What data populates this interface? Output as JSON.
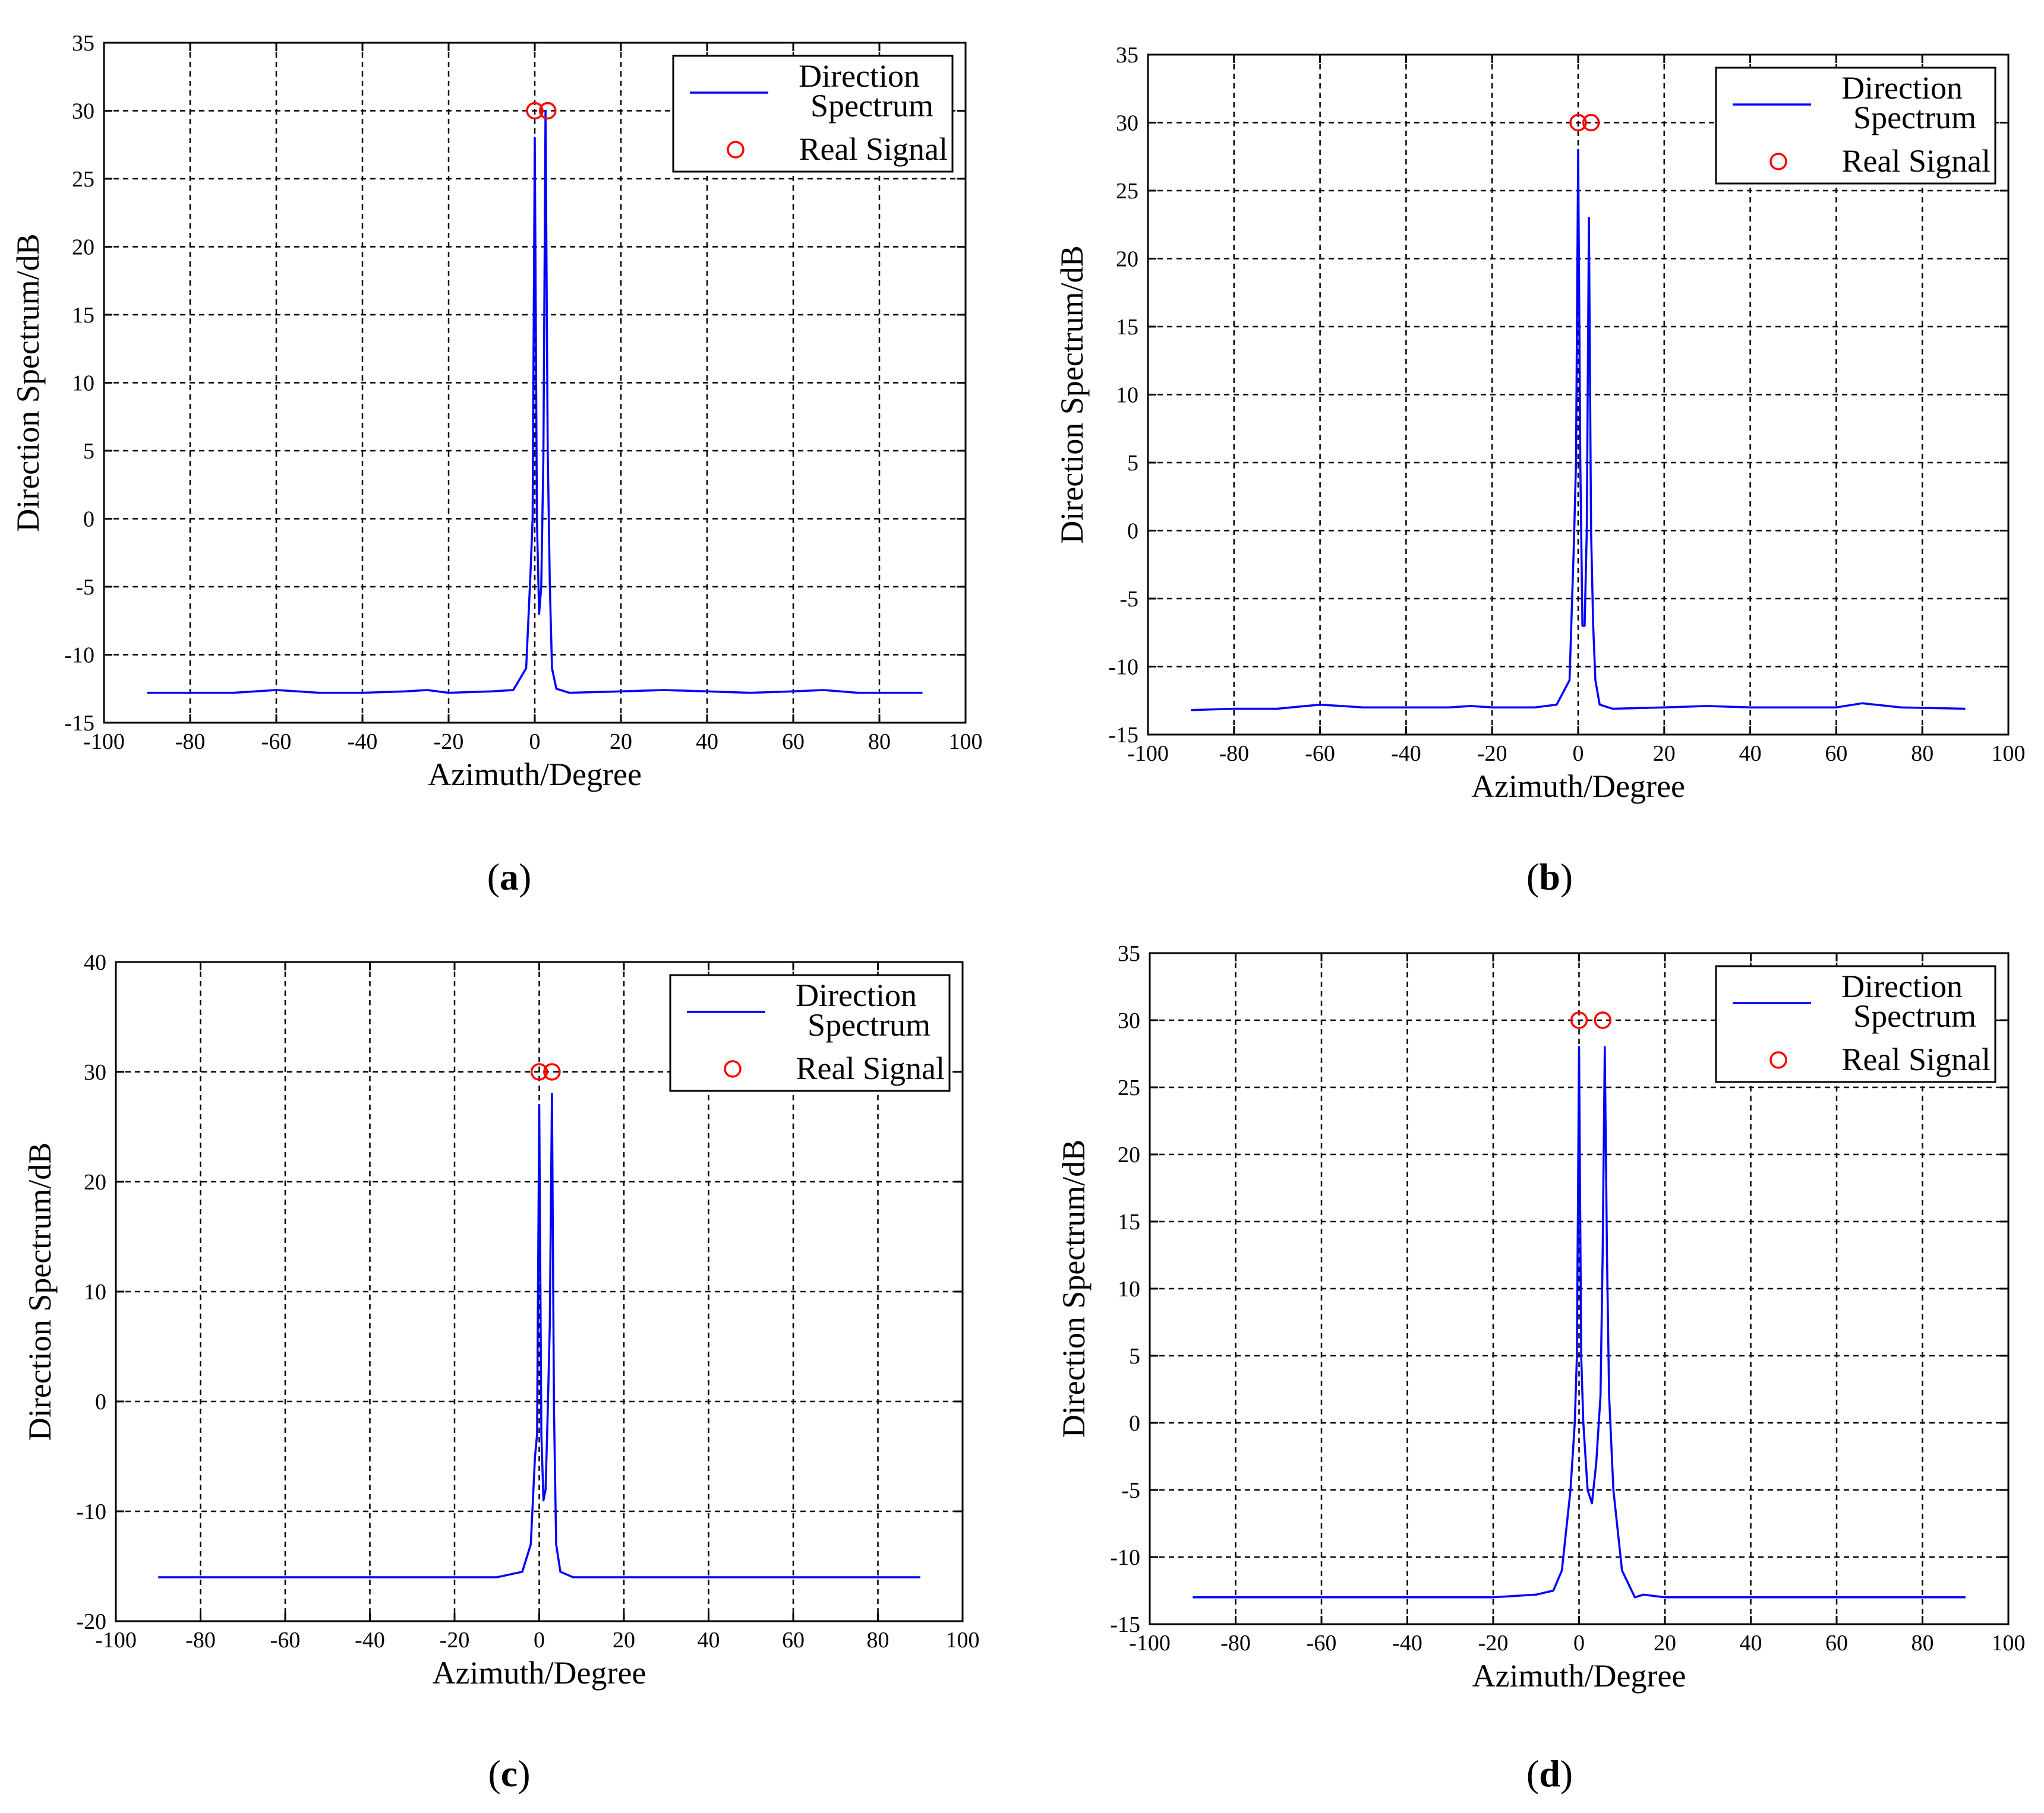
{
  "chart_data": [
    {
      "type": "line",
      "panel": "a",
      "caption_letter": "a",
      "xlabel": "Azimuth/Degree",
      "ylabel": "Direction Spectrum/dB",
      "xlim": [
        -100,
        100
      ],
      "ylim": [
        -15,
        35
      ],
      "xticks": [
        -100,
        -80,
        -60,
        -40,
        -20,
        0,
        20,
        40,
        60,
        80,
        100
      ],
      "yticks": [
        -15,
        -10,
        -5,
        0,
        5,
        10,
        15,
        20,
        25,
        30,
        35
      ],
      "grid": true,
      "legend": {
        "placement": "top-right",
        "entries": [
          "Direction\nSpectrum",
          "Real Signal"
        ]
      },
      "series": [
        {
          "name": "Direction Spectrum",
          "style": "line",
          "color": "#0000ff",
          "x": [
            -90,
            -80,
            -70,
            -60,
            -50,
            -40,
            -30,
            -25,
            -20,
            -10,
            -5,
            -2,
            -1,
            -0.5,
            0,
            0.5,
            1,
            1.5,
            2,
            2.5,
            3,
            3.5,
            4,
            5,
            8,
            20,
            30,
            40,
            50,
            60,
            67,
            75,
            90
          ],
          "y": [
            -12.8,
            -12.8,
            -12.8,
            -12.6,
            -12.8,
            -12.8,
            -12.7,
            -12.6,
            -12.8,
            -12.7,
            -12.6,
            -11,
            -4,
            0,
            28,
            0,
            -7,
            -5,
            4.5,
            30,
            5,
            -5,
            -11,
            -12.5,
            -12.8,
            -12.7,
            -12.6,
            -12.7,
            -12.8,
            -12.7,
            -12.6,
            -12.8,
            -12.8
          ]
        },
        {
          "name": "Real Signal",
          "style": "marker",
          "color": "#ff0000",
          "x": [
            0,
            3
          ],
          "y": [
            30,
            30
          ]
        }
      ]
    },
    {
      "type": "line",
      "panel": "b",
      "caption_letter": "b",
      "xlabel": "Azimuth/Degree",
      "ylabel": "Direction Spectrum/dB",
      "xlim": [
        -100,
        100
      ],
      "ylim": [
        -15,
        35
      ],
      "xticks": [
        -100,
        -80,
        -60,
        -40,
        -20,
        0,
        20,
        40,
        60,
        80,
        100
      ],
      "yticks": [
        -15,
        -10,
        -5,
        0,
        5,
        10,
        15,
        20,
        25,
        30,
        35
      ],
      "grid": true,
      "legend": {
        "placement": "top-right",
        "entries": [
          "Direction\nSpectrum",
          "Real Signal"
        ]
      },
      "series": [
        {
          "name": "Direction Spectrum",
          "style": "line",
          "color": "#0000ff",
          "x": [
            -90,
            -80,
            -70,
            -60,
            -50,
            -40,
            -30,
            -25,
            -20,
            -10,
            -5,
            -2,
            -1,
            -0.5,
            0,
            0.5,
            1,
            1.5,
            2,
            2.5,
            3,
            3.5,
            4,
            5,
            8,
            20,
            30,
            40,
            50,
            60,
            66,
            75,
            90
          ],
          "y": [
            -13.2,
            -13.1,
            -13.1,
            -12.8,
            -13.0,
            -13.0,
            -13.0,
            -12.9,
            -13.0,
            -13.0,
            -12.8,
            -11,
            -1,
            5,
            28,
            5,
            -7,
            -7,
            0,
            23,
            0,
            -7,
            -11,
            -12.8,
            -13.1,
            -13.0,
            -12.9,
            -13.0,
            -13.0,
            -13.0,
            -12.7,
            -13.0,
            -13.1
          ]
        },
        {
          "name": "Real Signal",
          "style": "marker",
          "color": "#ff0000",
          "x": [
            0,
            3
          ],
          "y": [
            30,
            30
          ]
        }
      ]
    },
    {
      "type": "line",
      "panel": "c",
      "caption_letter": "c",
      "xlabel": "Azimuth/Degree",
      "ylabel": "Direction Spectrum/dB",
      "xlim": [
        -100,
        100
      ],
      "ylim": [
        -20,
        40
      ],
      "xticks": [
        -100,
        -80,
        -60,
        -40,
        -20,
        0,
        20,
        40,
        60,
        80,
        100
      ],
      "yticks": [
        -20,
        -10,
        0,
        10,
        20,
        30,
        40
      ],
      "grid": true,
      "legend": {
        "placement": "top-right",
        "entries": [
          "Direction\nSpectrum",
          "Real Signal"
        ]
      },
      "series": [
        {
          "name": "Direction Spectrum",
          "style": "line",
          "color": "#0000ff",
          "x": [
            -90,
            -60,
            -30,
            -10,
            -4,
            -2,
            -1,
            -0.5,
            0,
            0.5,
            1,
            1.5,
            2,
            2.5,
            3,
            3.5,
            4,
            5,
            8,
            30,
            60,
            90
          ],
          "y": [
            -16,
            -16,
            -16,
            -16,
            -15.5,
            -13,
            -5,
            -3,
            27,
            -3,
            -9,
            -8,
            -1,
            7,
            28,
            -1,
            -13,
            -15.5,
            -16,
            -16,
            -16,
            -16
          ]
        },
        {
          "name": "Real Signal",
          "style": "marker",
          "color": "#ff0000",
          "x": [
            0,
            3
          ],
          "y": [
            30,
            30
          ]
        }
      ]
    },
    {
      "type": "line",
      "panel": "d",
      "caption_letter": "d",
      "xlabel": "Azimuth/Degree",
      "ylabel": "Direction Spectrum/dB",
      "xlim": [
        -100,
        100
      ],
      "ylim": [
        -15,
        35
      ],
      "xticks": [
        -100,
        -80,
        -60,
        -40,
        -20,
        0,
        20,
        40,
        60,
        80,
        100
      ],
      "yticks": [
        -15,
        -10,
        -5,
        0,
        5,
        10,
        15,
        20,
        25,
        30,
        35
      ],
      "grid": true,
      "legend": {
        "placement": "top-right",
        "entries": [
          "Direction\nSpectrum",
          "Real Signal"
        ]
      },
      "series": [
        {
          "name": "Direction Spectrum",
          "style": "line",
          "color": "#0000ff",
          "x": [
            -90,
            -60,
            -30,
            -20,
            -10,
            -6,
            -4,
            -2,
            -1,
            -0.5,
            0,
            0.5,
            1,
            2,
            3,
            4,
            5,
            5.5,
            6,
            6.5,
            7,
            8,
            10,
            13,
            15,
            20,
            30,
            60,
            90
          ],
          "y": [
            -13,
            -13,
            -13,
            -13,
            -12.8,
            -12.5,
            -11,
            -5,
            0,
            5,
            28,
            5,
            0,
            -5,
            -6,
            -3,
            2,
            12.5,
            28,
            12.5,
            2,
            -5,
            -11,
            -13,
            -12.8,
            -13,
            -13,
            -13,
            -13
          ]
        },
        {
          "name": "Real Signal",
          "style": "marker",
          "color": "#ff0000",
          "x": [
            0,
            5.5
          ],
          "y": [
            30,
            30
          ]
        }
      ]
    }
  ],
  "colors": {
    "spectrum": "#0000ff",
    "signal": "#ff0000",
    "grid": "#000000"
  }
}
